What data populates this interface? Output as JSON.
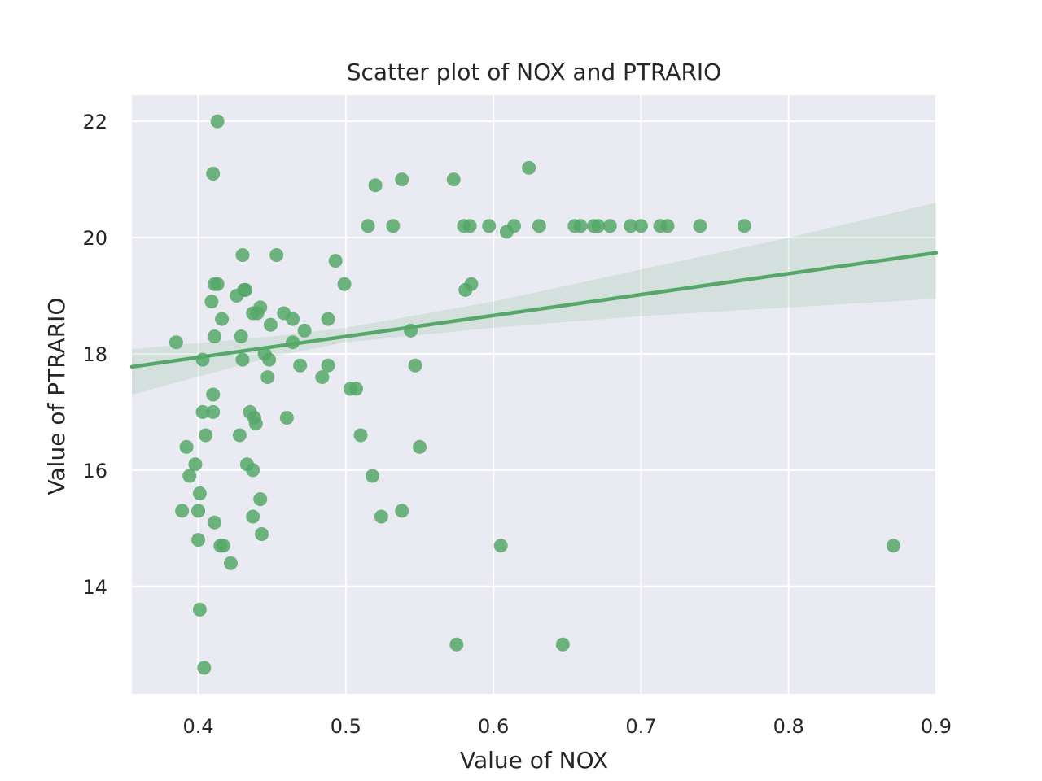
{
  "chart_data": {
    "type": "scatter",
    "title": "Scatter plot of NOX and PTRARIO",
    "xlabel": "Value of NOX",
    "ylabel": "Value of PTRARIO",
    "xlim": [
      0.355,
      0.9
    ],
    "ylim": [
      12.15,
      22.45
    ],
    "xticks": [
      0.4,
      0.5,
      0.6,
      0.7,
      0.8,
      0.9
    ],
    "xtick_labels": [
      "0.4",
      "0.5",
      "0.6",
      "0.7",
      "0.8",
      "0.9"
    ],
    "yticks": [
      14,
      16,
      18,
      20,
      22
    ],
    "ytick_labels": [
      "14",
      "16",
      "18",
      "20",
      "22"
    ],
    "grid": true,
    "background_color": "#eaeaf2",
    "grid_color": "#ffffff",
    "point_color": "#55a868",
    "regression": {
      "slope": 3.6,
      "intercept": 16.5,
      "ci_lower": [
        [
          0.355,
          17.3
        ],
        [
          0.45,
          17.95
        ],
        [
          0.5,
          18.2
        ],
        [
          0.6,
          18.45
        ],
        [
          0.7,
          18.65
        ],
        [
          0.8,
          18.8
        ],
        [
          0.9,
          18.95
        ]
      ],
      "ci_upper": [
        [
          0.355,
          18.08
        ],
        [
          0.45,
          18.3
        ],
        [
          0.5,
          18.45
        ],
        [
          0.6,
          18.9
        ],
        [
          0.7,
          19.45
        ],
        [
          0.8,
          20.0
        ],
        [
          0.9,
          20.6
        ]
      ]
    },
    "series": [
      {
        "points": [
          [
            0.385,
            18.2
          ],
          [
            0.389,
            15.3
          ],
          [
            0.392,
            16.4
          ],
          [
            0.394,
            15.9
          ],
          [
            0.398,
            16.1
          ],
          [
            0.4,
            15.3
          ],
          [
            0.4,
            14.8
          ],
          [
            0.401,
            15.6
          ],
          [
            0.401,
            13.6
          ],
          [
            0.403,
            17.9
          ],
          [
            0.403,
            17.0
          ],
          [
            0.404,
            12.6
          ],
          [
            0.405,
            16.6
          ],
          [
            0.409,
            18.9
          ],
          [
            0.41,
            17.3
          ],
          [
            0.41,
            17.0
          ],
          [
            0.41,
            21.1
          ],
          [
            0.411,
            19.2
          ],
          [
            0.411,
            18.3
          ],
          [
            0.411,
            15.1
          ],
          [
            0.413,
            22.0
          ],
          [
            0.413,
            19.2
          ],
          [
            0.415,
            14.7
          ],
          [
            0.416,
            18.6
          ],
          [
            0.417,
            14.7
          ],
          [
            0.422,
            14.4
          ],
          [
            0.426,
            19.0
          ],
          [
            0.428,
            16.6
          ],
          [
            0.429,
            18.3
          ],
          [
            0.43,
            19.7
          ],
          [
            0.43,
            17.9
          ],
          [
            0.431,
            19.1
          ],
          [
            0.432,
            19.1
          ],
          [
            0.433,
            16.1
          ],
          [
            0.435,
            17.0
          ],
          [
            0.437,
            18.7
          ],
          [
            0.437,
            16.0
          ],
          [
            0.437,
            15.2
          ],
          [
            0.438,
            16.9
          ],
          [
            0.439,
            16.8
          ],
          [
            0.44,
            18.7
          ],
          [
            0.442,
            18.8
          ],
          [
            0.442,
            15.5
          ],
          [
            0.443,
            14.9
          ],
          [
            0.445,
            18.0
          ],
          [
            0.447,
            17.6
          ],
          [
            0.448,
            17.9
          ],
          [
            0.449,
            18.5
          ],
          [
            0.453,
            19.7
          ],
          [
            0.458,
            18.7
          ],
          [
            0.46,
            16.9
          ],
          [
            0.464,
            18.6
          ],
          [
            0.464,
            18.2
          ],
          [
            0.469,
            17.8
          ],
          [
            0.472,
            18.4
          ],
          [
            0.484,
            17.6
          ],
          [
            0.488,
            18.6
          ],
          [
            0.488,
            17.8
          ],
          [
            0.493,
            19.6
          ],
          [
            0.499,
            19.2
          ],
          [
            0.503,
            17.4
          ],
          [
            0.507,
            17.4
          ],
          [
            0.51,
            16.6
          ],
          [
            0.515,
            20.2
          ],
          [
            0.518,
            15.9
          ],
          [
            0.52,
            20.9
          ],
          [
            0.524,
            15.2
          ],
          [
            0.532,
            20.2
          ],
          [
            0.538,
            21.0
          ],
          [
            0.538,
            15.3
          ],
          [
            0.544,
            18.4
          ],
          [
            0.547,
            17.8
          ],
          [
            0.55,
            16.4
          ],
          [
            0.573,
            21.0
          ],
          [
            0.575,
            13.0
          ],
          [
            0.58,
            20.2
          ],
          [
            0.581,
            19.1
          ],
          [
            0.584,
            20.2
          ],
          [
            0.585,
            19.2
          ],
          [
            0.597,
            20.2
          ],
          [
            0.605,
            14.7
          ],
          [
            0.609,
            20.1
          ],
          [
            0.614,
            20.2
          ],
          [
            0.624,
            21.2
          ],
          [
            0.631,
            20.2
          ],
          [
            0.647,
            13.0
          ],
          [
            0.655,
            20.2
          ],
          [
            0.659,
            20.2
          ],
          [
            0.668,
            20.2
          ],
          [
            0.671,
            20.2
          ],
          [
            0.679,
            20.2
          ],
          [
            0.693,
            20.2
          ],
          [
            0.7,
            20.2
          ],
          [
            0.713,
            20.2
          ],
          [
            0.718,
            20.2
          ],
          [
            0.74,
            20.2
          ],
          [
            0.77,
            20.2
          ],
          [
            0.871,
            14.7
          ]
        ]
      }
    ]
  }
}
